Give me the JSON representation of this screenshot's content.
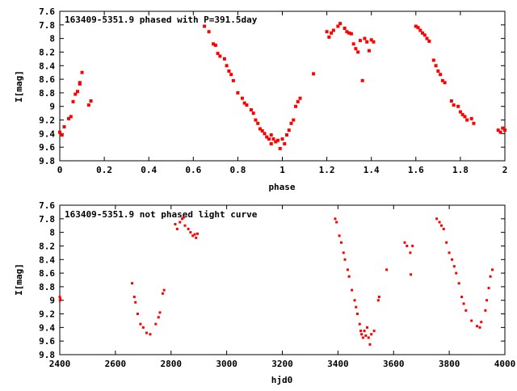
{
  "chart_data": [
    {
      "type": "scatter",
      "title": "163409-5351.9 phased with P=391.5day",
      "xlabel": "phase",
      "ylabel": "I[mag]",
      "xlim": [
        0,
        2
      ],
      "ylim": [
        7.6,
        9.8
      ],
      "y_inverted": true,
      "grid": false,
      "legend": "none",
      "marker_color": "#ff0000",
      "xticks": [
        "0",
        "0.2",
        "0.4",
        "0.6",
        "0.8",
        "1",
        "1.2",
        "1.4",
        "1.6",
        "1.8",
        "2"
      ],
      "yticks": [
        "7.6",
        "7.8",
        "8",
        "8.2",
        "8.4",
        "8.6",
        "8.8",
        "9",
        "9.2",
        "9.4",
        "9.6",
        "9.8"
      ],
      "series": [
        {
          "points": [
            [
              0.0,
              9.38
            ],
            [
              0.01,
              9.42
            ],
            [
              0.02,
              9.3
            ],
            [
              0.04,
              9.18
            ],
            [
              0.05,
              9.15
            ],
            [
              0.06,
              8.93
            ],
            [
              0.07,
              8.82
            ],
            [
              0.08,
              8.78
            ],
            [
              0.09,
              8.67
            ],
            [
              0.09,
              8.65
            ],
            [
              0.1,
              8.5
            ],
            [
              0.13,
              8.98
            ],
            [
              0.14,
              8.92
            ],
            [
              0.65,
              7.82
            ],
            [
              0.67,
              7.9
            ],
            [
              0.69,
              8.08
            ],
            [
              0.7,
              8.1
            ],
            [
              0.71,
              8.22
            ],
            [
              0.72,
              8.26
            ],
            [
              0.74,
              8.3
            ],
            [
              0.75,
              8.4
            ],
            [
              0.76,
              8.48
            ],
            [
              0.77,
              8.53
            ],
            [
              0.78,
              8.62
            ],
            [
              0.8,
              8.8
            ],
            [
              0.82,
              8.88
            ],
            [
              0.83,
              8.95
            ],
            [
              0.84,
              8.98
            ],
            [
              0.86,
              9.05
            ],
            [
              0.87,
              9.1
            ],
            [
              0.88,
              9.2
            ],
            [
              0.89,
              9.25
            ],
            [
              0.9,
              9.33
            ],
            [
              0.91,
              9.36
            ],
            [
              0.92,
              9.4
            ],
            [
              0.93,
              9.45
            ],
            [
              0.94,
              9.48
            ],
            [
              0.95,
              9.42
            ],
            [
              0.95,
              9.55
            ],
            [
              0.96,
              9.48
            ],
            [
              0.97,
              9.52
            ],
            [
              0.98,
              9.5
            ],
            [
              0.99,
              9.62
            ],
            [
              1.0,
              9.48
            ],
            [
              1.01,
              9.55
            ],
            [
              1.02,
              9.42
            ],
            [
              1.03,
              9.35
            ],
            [
              1.04,
              9.25
            ],
            [
              1.05,
              9.2
            ],
            [
              1.06,
              9.0
            ],
            [
              1.07,
              8.93
            ],
            [
              1.08,
              8.88
            ],
            [
              1.14,
              8.52
            ],
            [
              1.2,
              7.9
            ],
            [
              1.21,
              7.98
            ],
            [
              1.22,
              7.92
            ],
            [
              1.23,
              7.88
            ],
            [
              1.25,
              7.82
            ],
            [
              1.26,
              7.78
            ],
            [
              1.28,
              7.85
            ],
            [
              1.29,
              7.9
            ],
            [
              1.3,
              7.92
            ],
            [
              1.31,
              7.93
            ],
            [
              1.32,
              8.08
            ],
            [
              1.33,
              8.15
            ],
            [
              1.34,
              8.2
            ],
            [
              1.35,
              8.03
            ],
            [
              1.36,
              8.62
            ],
            [
              1.37,
              8.0
            ],
            [
              1.38,
              8.05
            ],
            [
              1.39,
              8.18
            ],
            [
              1.4,
              8.02
            ],
            [
              1.41,
              8.05
            ],
            [
              1.6,
              7.82
            ],
            [
              1.61,
              7.84
            ],
            [
              1.62,
              7.88
            ],
            [
              1.63,
              7.92
            ],
            [
              1.64,
              7.95
            ],
            [
              1.65,
              8.0
            ],
            [
              1.66,
              8.04
            ],
            [
              1.68,
              8.32
            ],
            [
              1.69,
              8.4
            ],
            [
              1.7,
              8.48
            ],
            [
              1.71,
              8.53
            ],
            [
              1.72,
              8.62
            ],
            [
              1.73,
              8.65
            ],
            [
              1.76,
              8.92
            ],
            [
              1.77,
              8.98
            ],
            [
              1.79,
              9.0
            ],
            [
              1.8,
              9.08
            ],
            [
              1.81,
              9.12
            ],
            [
              1.82,
              9.15
            ],
            [
              1.83,
              9.2
            ],
            [
              1.85,
              9.18
            ],
            [
              1.86,
              9.25
            ],
            [
              1.97,
              9.35
            ],
            [
              1.98,
              9.38
            ],
            [
              1.99,
              9.32
            ],
            [
              2.0,
              9.35
            ]
          ]
        }
      ]
    },
    {
      "type": "scatter",
      "title": "163409-5351.9 not phased light curve",
      "xlabel": "hjd0",
      "ylabel": "I[mag]",
      "xlim": [
        2400,
        4000
      ],
      "ylim": [
        7.6,
        9.8
      ],
      "y_inverted": true,
      "grid": false,
      "legend": "none",
      "marker_color": "#ff0000",
      "xticks": [
        "2400",
        "2600",
        "2800",
        "3000",
        "3200",
        "3400",
        "3600",
        "3800",
        "4000"
      ],
      "yticks": [
        "7.6",
        "7.8",
        "8",
        "8.2",
        "8.4",
        "8.6",
        "8.8",
        "9",
        "9.2",
        "9.4",
        "9.6",
        "9.8"
      ],
      "series": [
        {
          "points": [
            [
              2400,
              8.95
            ],
            [
              2401,
              9.0
            ],
            [
              2402,
              8.98
            ],
            [
              2660,
              8.75
            ],
            [
              2668,
              8.95
            ],
            [
              2672,
              9.03
            ],
            [
              2680,
              9.2
            ],
            [
              2690,
              9.35
            ],
            [
              2700,
              9.4
            ],
            [
              2712,
              9.48
            ],
            [
              2725,
              9.5
            ],
            [
              2745,
              9.35
            ],
            [
              2755,
              9.25
            ],
            [
              2760,
              9.18
            ],
            [
              2770,
              8.9
            ],
            [
              2775,
              8.85
            ],
            [
              2815,
              7.88
            ],
            [
              2822,
              7.95
            ],
            [
              2832,
              7.85
            ],
            [
              2840,
              7.8
            ],
            [
              2845,
              7.78
            ],
            [
              2850,
              7.9
            ],
            [
              2862,
              7.95
            ],
            [
              2870,
              8.0
            ],
            [
              2878,
              8.05
            ],
            [
              2885,
              8.03
            ],
            [
              2890,
              8.08
            ],
            [
              2895,
              8.02
            ],
            [
              3390,
              7.8
            ],
            [
              3395,
              7.85
            ],
            [
              3405,
              8.05
            ],
            [
              3412,
              8.15
            ],
            [
              3420,
              8.3
            ],
            [
              3425,
              8.4
            ],
            [
              3435,
              8.55
            ],
            [
              3440,
              8.65
            ],
            [
              3450,
              8.85
            ],
            [
              3460,
              9.0
            ],
            [
              3465,
              9.1
            ],
            [
              3470,
              9.2
            ],
            [
              3478,
              9.35
            ],
            [
              3482,
              9.45
            ],
            [
              3485,
              9.5
            ],
            [
              3490,
              9.55
            ],
            [
              3495,
              9.45
            ],
            [
              3500,
              9.52
            ],
            [
              3505,
              9.4
            ],
            [
              3510,
              9.55
            ],
            [
              3515,
              9.65
            ],
            [
              3520,
              9.5
            ],
            [
              3530,
              9.45
            ],
            [
              3545,
              9.0
            ],
            [
              3548,
              8.95
            ],
            [
              3575,
              8.55
            ],
            [
              3640,
              8.15
            ],
            [
              3648,
              8.2
            ],
            [
              3660,
              8.3
            ],
            [
              3662,
              8.62
            ],
            [
              3668,
              8.2
            ],
            [
              3755,
              7.8
            ],
            [
              3765,
              7.85
            ],
            [
              3772,
              7.9
            ],
            [
              3780,
              7.95
            ],
            [
              3790,
              8.15
            ],
            [
              3800,
              8.3
            ],
            [
              3810,
              8.4
            ],
            [
              3818,
              8.5
            ],
            [
              3825,
              8.6
            ],
            [
              3835,
              8.75
            ],
            [
              3845,
              8.95
            ],
            [
              3852,
              9.05
            ],
            [
              3860,
              9.15
            ],
            [
              3880,
              9.3
            ],
            [
              3900,
              9.38
            ],
            [
              3910,
              9.4
            ],
            [
              3915,
              9.32
            ],
            [
              3930,
              9.15
            ],
            [
              3935,
              9.0
            ],
            [
              3942,
              8.82
            ],
            [
              3948,
              8.65
            ],
            [
              3955,
              8.55
            ]
          ]
        }
      ]
    }
  ]
}
